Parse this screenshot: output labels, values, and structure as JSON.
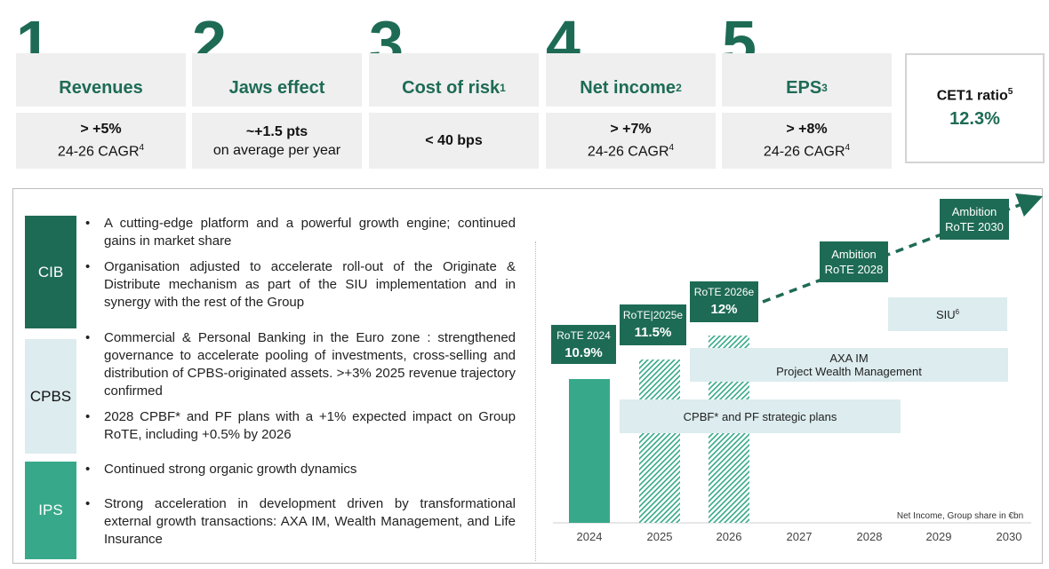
{
  "kpis": [
    {
      "number": "1",
      "title": "Revenues",
      "sup": "",
      "value_main": "> +5%",
      "value_sub": "24-26 CAGR",
      "value_sup": "4"
    },
    {
      "number": "2",
      "title": "Jaws effect",
      "sup": "",
      "value_main": "~+1.5 pts",
      "value_sub": "on average per year",
      "value_sup": ""
    },
    {
      "number": "3",
      "title": "Cost of risk",
      "sup": "1",
      "value_main": "< 40 bps",
      "value_sub": "",
      "value_sup": ""
    },
    {
      "number": "4",
      "title": "Net income",
      "sup": "2",
      "value_main": "> +7%",
      "value_sub": "24-26 CAGR",
      "value_sup": "4"
    },
    {
      "number": "5",
      "title": "EPS",
      "sup": "3",
      "value_main": "> +8%",
      "value_sub": "24-26 CAGR",
      "value_sup": "4"
    }
  ],
  "cet1": {
    "label": "CET1 ratio",
    "sup": "5",
    "value": "12.3%"
  },
  "segments": [
    {
      "name": "CIB",
      "color": "#1e6b55",
      "bullets": [
        "A cutting-edge platform and a powerful growth engine; continued gains in market share",
        "Organisation adjusted to accelerate roll-out of the Originate & Distribute mechanism as part of the SIU implementation and in synergy with the rest of the Group"
      ]
    },
    {
      "name": "CPBS",
      "color": "#dcecef",
      "bullets": [
        "Commercial & Personal Banking in the Euro zone : strengthened governance to accelerate pooling of investments, cross-selling and distribution of CPBS-originated assets. >+3% 2025 revenue trajectory confirmed",
        "2028 CPBF* and PF plans with a +1% expected impact on Group RoTE, including +0.5% by 2026"
      ]
    },
    {
      "name": "IPS",
      "color": "#37a98a",
      "bullets": [
        "Continued strong organic growth dynamics",
        "Strong acceleration in development driven by transformational external growth transactions: AXA IM, Wealth Management, and Life Insurance"
      ]
    }
  ],
  "chart_data": {
    "type": "bar",
    "categories": [
      "2024",
      "2025",
      "2026",
      "2027",
      "2028",
      "2029",
      "2030"
    ],
    "note": "Net Income, Group share in €bn",
    "bars": [
      {
        "year": "2024",
        "label": "RoTE 2024",
        "value_label": "10.9%",
        "rote": 10.9,
        "style": "solid"
      },
      {
        "year": "2025",
        "label": "RoTE|2025e",
        "value_label": "11.5%",
        "rote": 11.5,
        "style": "hatched"
      },
      {
        "year": "2026",
        "label": "RoTE 2026e",
        "value_label": "12%",
        "rote": 12,
        "style": "hatched"
      }
    ],
    "ambitions": [
      {
        "line1": "Ambition",
        "line2": "RoTE 2028",
        "year": "2028"
      },
      {
        "line1": "Ambition",
        "line2": "RoTE 2030",
        "year": "2030"
      }
    ],
    "bands": [
      {
        "label": "SIU",
        "sup": "6",
        "from": "2029",
        "to": "2030"
      },
      {
        "label": "AXA IM",
        "label2": "Project Wealth Management",
        "from": "2026",
        "to": "2030"
      },
      {
        "label": "CPBF* and PF strategic plans",
        "from": "2025",
        "to": "2028"
      }
    ],
    "colors": {
      "dark": "#1e6b55",
      "mid": "#37a98a",
      "light": "#dcecef"
    }
  }
}
